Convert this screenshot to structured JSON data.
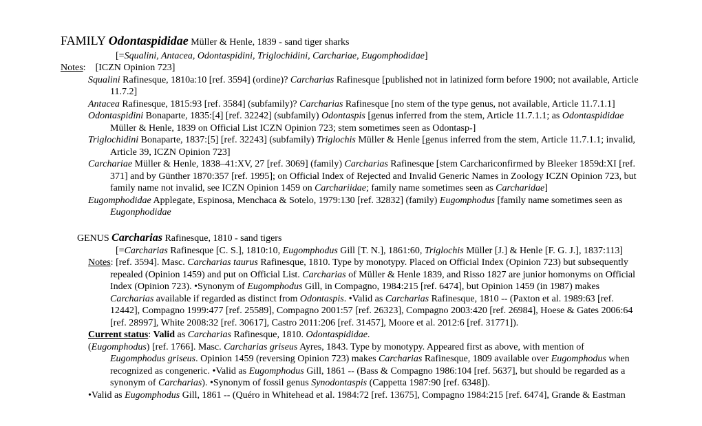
{
  "family": {
    "label": "FAMILY ",
    "name": "Odontaspididae",
    "authority": " Müller & Henle, 1839 - ",
    "common": "sand tiger sharks",
    "syn_open": "[=",
    "syn_names": "Squalini,  Antacea, Odontaspidini, Triglochidini, Carchariae, Eugomphodidae",
    "syn_close": "]",
    "notes_label": "Notes",
    "notes_colon": ":",
    "notes_text": "    [ICZN Opinion 723]",
    "entries": [
      {
        "html": "<i>Squalini</i> Rafinesque, 1810a:10 [ref. 3594] (ordine)? <i>Carcharias</i> Rafinesque [published not in latinized form before 1900; not available, Article 11.7.2]"
      },
      {
        "html": "<i>Antacea</i> Rafinesque, 1815:93 [ref. 3584] (subfamily)? <i>Carcharias</i> Rafinesque [no stem of the type genus, not available, Article 11.7.1.1]"
      },
      {
        "html": "<i>Odontaspidini</i> Bonaparte, 1835:[4] [ref. 32242] (subfamily) <i>Odontaspis</i> [genus inferred from the stem, Article 11.7.1.1; as <i>Odontaspididae</i> Müller & Henle, 1839 on Official List ICZN Opinion 723; stem sometimes seen as Odontasp-]"
      },
      {
        "html": "<i>Triglochidini</i> Bonaparte, 1837:[5] [ref. 32243] (subfamily) <i>Triglochis</i> Müller & Henle [genus inferred from the stem, Article 11.7.1.1; invalid, Article 39, ICZN Opinion 723]"
      },
      {
        "html": "<i>Carchariae</i> Müller & Henle, 1838–41:XV, 27 [ref. 3069] (family) <i>Carcharias</i> Rafinesque [stem Carchariconfirmed by Bleeker 1859d:XI [ref. 371] and by Günther 1870:357 [ref. 1995]; on Official Index of Rejected and Invalid Generic Names in Zoology ICZN Opinion 723, but family name not invalid, see ICZN Opinion 1459 on <i>Carchariidae</i>; family name sometimes seen as <i>Carcharidae</i>]"
      },
      {
        "html": "<i>Eugomphodidae</i> Applegate, Espinosa, Menchaca & Sotelo, 1979:130 [ref. 32832] (family) <i>Eugomphodus</i> [family name sometimes seen as <i>Eugonphodidae</i>"
      }
    ]
  },
  "genus": {
    "label": "GENUS ",
    "name": "Carcharias",
    "authority": " Rafinesque, 1810 - ",
    "common": "sand tigers",
    "syn_open": "[=",
    "syn_html": "<i>Carcharias</i> Rafinesque [C. S.], 1810:10, <i>Eugomphodus</i> Gill [T. N.], 1861:60, <i>Triglochis</i> Müller [J.] & Henle [F. G. J.], 1837:113]",
    "notes_label": "Notes",
    "notes_colon": ": ",
    "notes_html": "[ref. 3594]. Masc. <i>Carcharias taurus</i> Rafinesque, 1810. Type by monotypy. Placed on Official Index (Opinion 723) but subsequently repealed (Opinion 1459) and put on Official List. <i>Carcharias</i> of Müller & Henle 1839, and Risso 1827 are junior homonyms on Official Index (Opinion 723). •Synonym of <i>Eugomphodus</i> Gill, in Compagno, 1984:215 [ref. 6474], but Opinion 1459 (in 1987) makes <i>Carcharias</i> available if regarded as distinct from <i>Odontaspis</i>. •Valid as <i>Carcharias</i> Rafinesque, 1810 -- (Paxton et al. 1989:63 [ref. 12442], Compagno 1999:477 [ref. 25589], Compagno 2001:57 [ref. 26323], Compagno 2003:420 [ref. 26984], Hoese & Gates 2006:64 [ref. 28997], White 2008:32 [ref. 30617], Castro 2011:206 [ref. 31457], Moore et al. 2012:6 [ref. 31771]).",
    "status_label": "Current status",
    "status_html": ": <b>Valid</b> as <i>Carcharias</i> Rafinesque, 1810. <i>Odontaspididae</i>.",
    "eugom_html": "(<i>Eugomphodus</i>) [ref. 1766]. Masc. <i>Carcharias griseus</i> Ayres, 1843. Type by monotypy. Appeared first as above, with mention of <i>Eugomphodus griseus</i>. Opinion 1459 (reversing Opinion 723) makes <i>Carcharias</i> Rafinesque, 1809 available over <i>Eugomphodus</i> when recognized as congeneric. •Valid as <i>Eugomphodus</i> Gill, 1861 -- (Bass & Compagno 1986:104 [ref. 5637], but should be regarded as a synonym of <i>Carcharias</i>). •Synonym of fossil genus <i>Synodontaspis</i> (Cappetta 1987:90 [ref. 6348]).",
    "valid_html": "•Valid as <i>Eugomphodus</i> Gill, 1861 -- (Quéro in Whitehead et al. 1984:72 [ref. 13675], Compagno 1984:215 [ref. 6474], Grande & Eastman"
  }
}
